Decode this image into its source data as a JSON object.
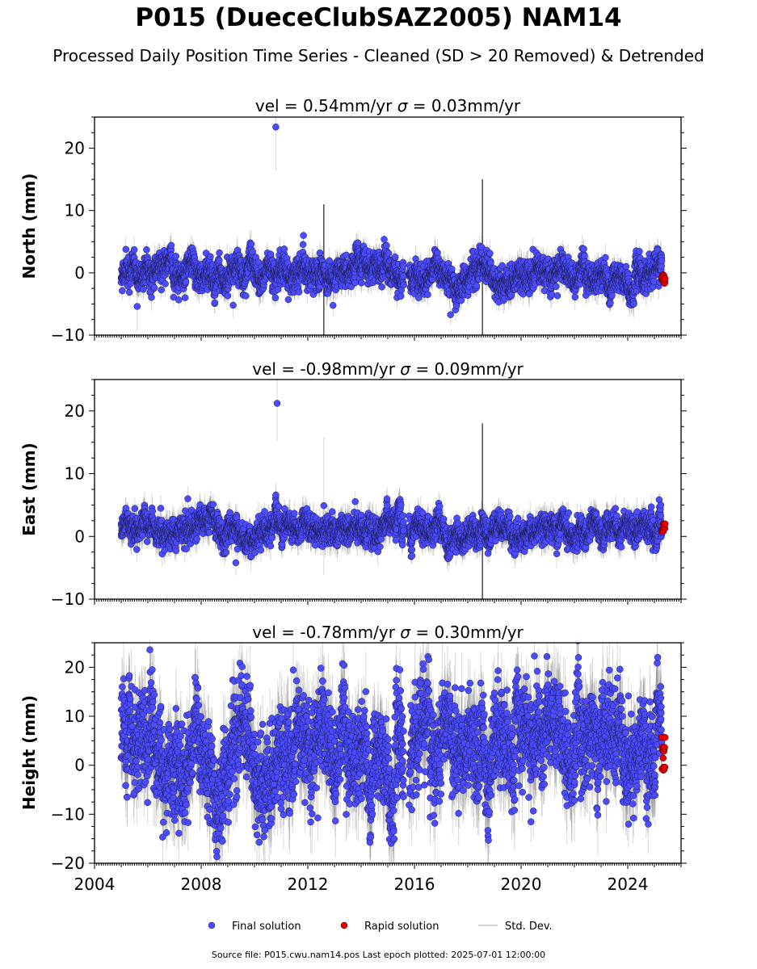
{
  "title": "P015 (DueceClubSAZ2005) NAM14",
  "subtitle": "Processed Daily Position Time Series - Cleaned (SD > 20 Removed) & Detrended",
  "footer": "Source file: P015.cwu.nam14.pos  Last epoch plotted: 2025-07-01 12:00:00",
  "colors": {
    "final": "#4B4BFF",
    "rapid": "#E00000",
    "stddev": "#808080"
  },
  "chart_data": [
    {
      "type": "scatter",
      "component": "north",
      "title": "vel = 0.54mm/yr   σ = 0.03mm/yr",
      "vel_text": "vel = 0.54mm/yr",
      "sigma_value": "= 0.03mm/yr",
      "ylabel": "North (mm)",
      "xlim": [
        2004,
        2026
      ],
      "ylim": [
        -10,
        25
      ],
      "yticks": [
        -10,
        0,
        10,
        20
      ],
      "xticks": [
        2004,
        2008,
        2012,
        2016,
        2020,
        2024
      ],
      "data_span": [
        2005.0,
        2025.4
      ],
      "gap": [
        2015.6,
        2015.8
      ],
      "noise_sd": 1.1,
      "std_dev_sd": 1.6,
      "segment_trend": [
        {
          "x": [
            2005.0,
            2015.6
          ],
          "y": [
            -0.6,
            0.2
          ]
        },
        {
          "x": [
            2015.8,
            2025.4
          ],
          "y": [
            0.0,
            -0.4
          ]
        }
      ],
      "outliers": [
        {
          "x": 2010.8,
          "y": 23.4,
          "sd": 7
        },
        {
          "x": 2005.6,
          "y": -5.4,
          "sd": 4
        },
        {
          "x": 2009.2,
          "y": -5.2,
          "sd": 2
        }
      ],
      "spikes": [
        {
          "x": 2018.55,
          "low": -10,
          "high": 15
        },
        {
          "x": 2012.6,
          "low": -10,
          "high": 11
        }
      ],
      "rapid": {
        "x": [
          2025.28,
          2025.4
        ],
        "y": [
          -1.8,
          -0.2
        ]
      }
    },
    {
      "type": "scatter",
      "component": "east",
      "title": "vel = -0.98mm/yr   σ = 0.09mm/yr",
      "vel_text": "vel = -0.98mm/yr",
      "sigma_value": "= 0.09mm/yr",
      "ylabel": "East (mm)",
      "xlim": [
        2004,
        2026
      ],
      "ylim": [
        -10,
        25
      ],
      "yticks": [
        -10,
        0,
        10,
        20
      ],
      "xticks": [
        2004,
        2008,
        2012,
        2016,
        2020,
        2024
      ],
      "data_span": [
        2005.0,
        2025.4
      ],
      "gap": [
        2015.6,
        2015.8
      ],
      "noise_sd": 1.0,
      "std_dev_sd": 1.7,
      "segment_trend": [
        {
          "x": [
            2005.0,
            2015.6
          ],
          "y": [
            1.0,
            1.2
          ]
        },
        {
          "x": [
            2015.8,
            2025.4
          ],
          "y": [
            0.4,
            1.5
          ]
        }
      ],
      "outliers": [
        {
          "x": 2010.85,
          "y": 21.2,
          "sd": 6
        },
        {
          "x": 2010.8,
          "y": 6.6,
          "sd": 2
        },
        {
          "x": 2007.5,
          "y": 6.0,
          "sd": 2
        },
        {
          "x": 2012.6,
          "y": 4.9,
          "sd": 11
        },
        {
          "x": 2009.3,
          "y": -4.2,
          "sd": 2
        }
      ],
      "spikes": [
        {
          "x": 2018.55,
          "low": -10,
          "high": 18
        }
      ],
      "rapid": {
        "x": [
          2025.28,
          2025.4
        ],
        "y": [
          0.8,
          2.0
        ]
      }
    },
    {
      "type": "scatter",
      "component": "height",
      "title": "vel = -0.78mm/yr   σ = 0.30mm/yr",
      "vel_text": "vel = -0.78mm/yr",
      "sigma_value": "= 0.30mm/yr",
      "ylabel": "Height (mm)",
      "xlim": [
        2004,
        2026
      ],
      "ylim": [
        -20,
        25
      ],
      "yticks": [
        -20,
        -10,
        0,
        10,
        20
      ],
      "xticks": [
        2004,
        2008,
        2012,
        2016,
        2020,
        2024
      ],
      "xtick_labels": [
        "2004",
        "2008",
        "2012",
        "2016",
        "2020",
        "2024"
      ],
      "data_span": [
        2005.0,
        2025.4
      ],
      "gap": [
        2015.6,
        2015.8
      ],
      "noise_sd": 4.5,
      "std_dev_sd": 6.0,
      "segment_trend": [
        {
          "x": [
            2005.0,
            2015.6
          ],
          "y": [
            2.0,
            4.0
          ]
        },
        {
          "x": [
            2015.8,
            2025.4
          ],
          "y": [
            3.0,
            5.0
          ]
        }
      ],
      "outliers": [
        {
          "x": 2020.5,
          "y": 22.3,
          "sd": 3
        },
        {
          "x": 2008.8,
          "y": -15.5,
          "sd": 3
        }
      ],
      "spikes": [],
      "rapid": {
        "x": [
          2025.28,
          2025.4
        ],
        "y": [
          -1.0,
          7.0
        ]
      }
    }
  ],
  "legend": [
    {
      "label": "Final solution",
      "kind": "final"
    },
    {
      "label": "Rapid solution",
      "kind": "rapid"
    },
    {
      "label": "Std. Dev.",
      "kind": "stddev"
    }
  ]
}
